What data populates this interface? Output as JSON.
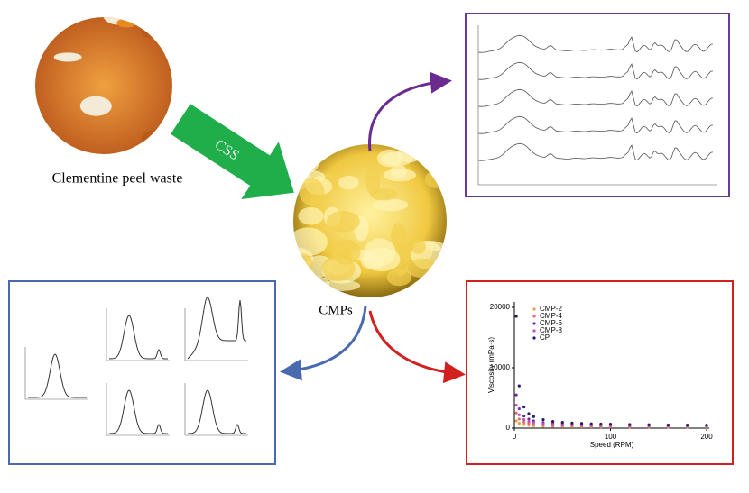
{
  "left_image": {
    "caption": "Clementine peel waste"
  },
  "process_arrow": {
    "label": "CSS"
  },
  "center_image": {
    "caption": "CMPs"
  },
  "viscosity_chart": {
    "type": "scatter",
    "ylabel": "Viscosity (mPa·s)",
    "xlabel": "Speed (RPM)",
    "xlim": [
      0,
      200
    ],
    "ylim": [
      0,
      20000
    ],
    "xticks": [
      0,
      100,
      200
    ],
    "yticks": [
      0,
      10000,
      20000
    ],
    "x": [
      2,
      5,
      10,
      15,
      20,
      30,
      40,
      50,
      60,
      70,
      80,
      90,
      100,
      120,
      140,
      160,
      180,
      200
    ],
    "series": [
      {
        "name": "CMP-2",
        "color": "#e8a040",
        "values": [
          1200,
          800,
          600,
          480,
          400,
          330,
          290,
          260,
          240,
          230,
          220,
          210,
          200,
          190,
          180,
          170,
          160,
          150
        ]
      },
      {
        "name": "CMP-4",
        "color": "#e07070",
        "values": [
          2500,
          1500,
          1000,
          800,
          650,
          520,
          450,
          400,
          370,
          350,
          330,
          310,
          300,
          280,
          270,
          260,
          250,
          240
        ]
      },
      {
        "name": "CMP-6",
        "color": "#7030a0",
        "values": [
          5500,
          3200,
          2000,
          1500,
          1200,
          900,
          760,
          680,
          620,
          580,
          550,
          520,
          500,
          470,
          440,
          420,
          400,
          390
        ]
      },
      {
        "name": "CMP-8",
        "color": "#c050c0",
        "values": [
          3800,
          2200,
          1400,
          1100,
          900,
          700,
          600,
          540,
          500,
          470,
          440,
          420,
          400,
          380,
          360,
          340,
          330,
          320
        ]
      },
      {
        "name": "CP",
        "color": "#202060",
        "values": [
          18500,
          7000,
          3500,
          2400,
          1900,
          1400,
          1100,
          950,
          850,
          780,
          720,
          680,
          650,
          600,
          560,
          530,
          500,
          480
        ]
      }
    ]
  }
}
